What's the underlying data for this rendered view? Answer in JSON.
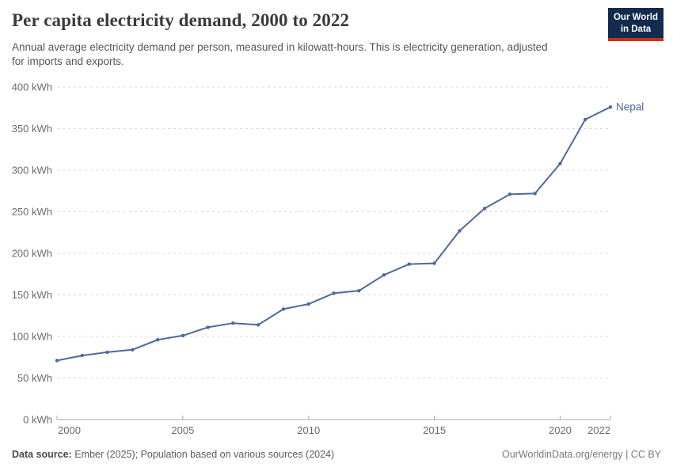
{
  "header": {
    "title": "Per capita electricity demand, 2000 to 2022",
    "subtitle": "Annual average electricity demand per person, measured in kilowatt-hours. This is electricity generation, adjusted for imports and exports.",
    "logo": {
      "line1": "Our World",
      "line2": "in Data",
      "bg_color": "#122b4e",
      "bar_color": "#c9301f"
    }
  },
  "chart_data": {
    "type": "line",
    "title": "Per capita electricity demand, 2000 to 2022",
    "xlabel": "",
    "ylabel": "",
    "ylim": [
      0,
      400
    ],
    "y_ticks": [
      0,
      50,
      100,
      150,
      200,
      250,
      300,
      350,
      400
    ],
    "y_tick_suffix": " kWh",
    "x_ticks": [
      2000,
      2005,
      2010,
      2015,
      2020,
      2022
    ],
    "grid": "horizontal dashed",
    "legend_position": "end-of-line label",
    "series": [
      {
        "name": "Nepal",
        "color": "#4c6a9c",
        "x": [
          2000,
          2001,
          2002,
          2003,
          2004,
          2005,
          2006,
          2007,
          2008,
          2009,
          2010,
          2011,
          2012,
          2013,
          2014,
          2015,
          2016,
          2017,
          2018,
          2019,
          2020,
          2021,
          2022
        ],
        "values": [
          71,
          77,
          81,
          84,
          96,
          101,
          111,
          116,
          114,
          133,
          139,
          152,
          155,
          174,
          187,
          188,
          227,
          254,
          271,
          272,
          308,
          361,
          376
        ]
      }
    ],
    "style": {
      "grid_color": "#d8d8d8",
      "axis_color": "#a8a8a8",
      "tick_label_color": "#6b6b6b"
    }
  },
  "footer": {
    "source_label": "Data source:",
    "source_text": " Ember (2025); Population based on various sources (2024)",
    "credit": "OurWorldinData.org/energy | CC BY"
  }
}
